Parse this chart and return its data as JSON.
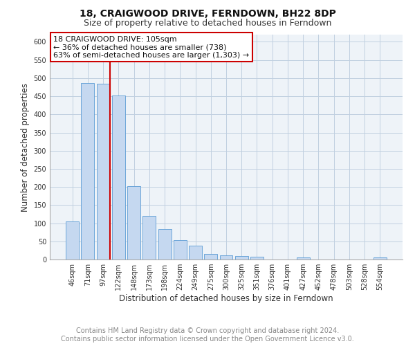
{
  "title": "18, CRAIGWOOD DRIVE, FERNDOWN, BH22 8DP",
  "subtitle": "Size of property relative to detached houses in Ferndown",
  "xlabel": "Distribution of detached houses by size in Ferndown",
  "ylabel": "Number of detached properties",
  "bar_color": "#c5d8f0",
  "bar_edge_color": "#5b9bd5",
  "categories": [
    "46sqm",
    "71sqm",
    "97sqm",
    "122sqm",
    "148sqm",
    "173sqm",
    "198sqm",
    "224sqm",
    "249sqm",
    "275sqm",
    "300sqm",
    "325sqm",
    "351sqm",
    "376sqm",
    "401sqm",
    "427sqm",
    "452sqm",
    "478sqm",
    "503sqm",
    "528sqm",
    "554sqm"
  ],
  "values": [
    105,
    487,
    484,
    453,
    202,
    120,
    83,
    54,
    38,
    16,
    12,
    10,
    8,
    0,
    0,
    6,
    0,
    0,
    0,
    0,
    6
  ],
  "red_line_index": 2,
  "annotation_text": "18 CRAIGWOOD DRIVE: 105sqm\n← 36% of detached houses are smaller (738)\n63% of semi-detached houses are larger (1,303) →",
  "annotation_box_color": "#ffffff",
  "annotation_border_color": "#cc0000",
  "red_line_color": "#cc0000",
  "ylim": [
    0,
    620
  ],
  "yticks": [
    0,
    50,
    100,
    150,
    200,
    250,
    300,
    350,
    400,
    450,
    500,
    550,
    600
  ],
  "grid_color": "#c0cfe0",
  "footer_text": "Contains HM Land Registry data © Crown copyright and database right 2024.\nContains public sector information licensed under the Open Government Licence v3.0.",
  "title_fontsize": 10,
  "subtitle_fontsize": 9,
  "xlabel_fontsize": 8.5,
  "ylabel_fontsize": 8.5,
  "footer_fontsize": 7,
  "tick_fontsize": 7,
  "annotation_fontsize": 8,
  "background_color": "#ffffff",
  "plot_bg_color": "#eef3f8"
}
